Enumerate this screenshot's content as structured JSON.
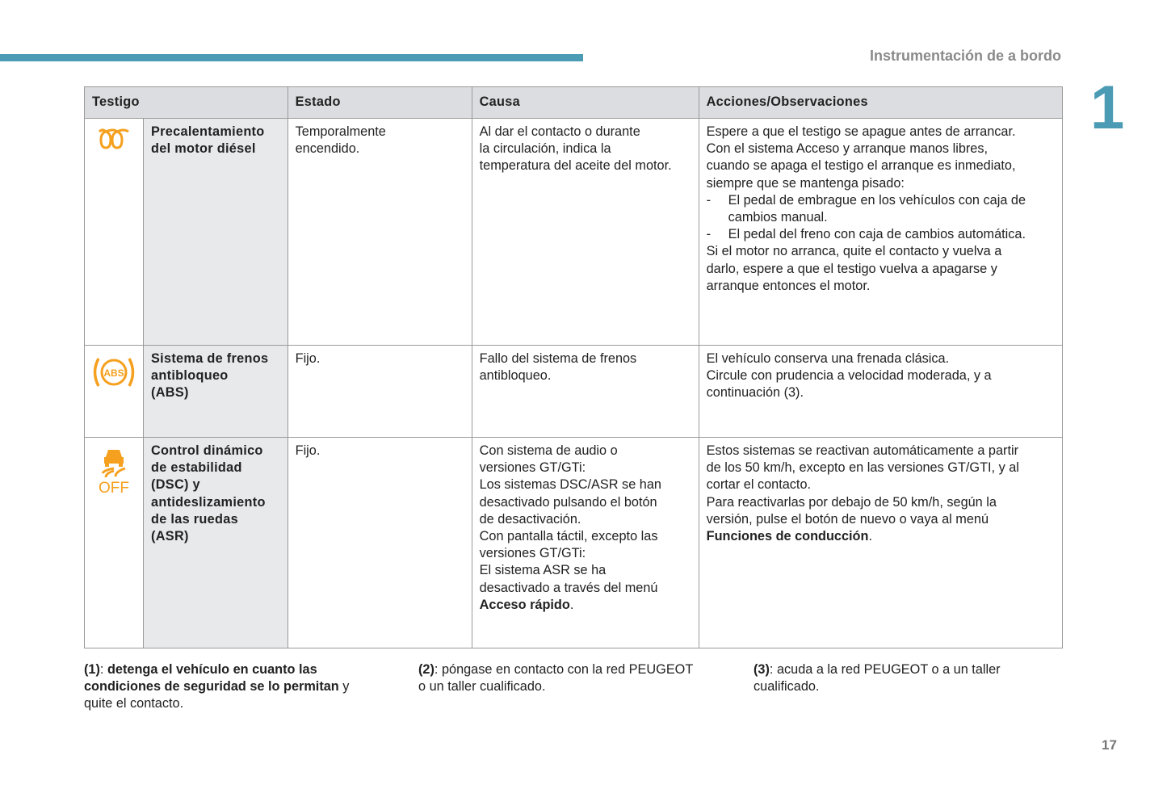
{
  "header": {
    "section_title": "Instrumentación de a bordo",
    "chapter_number": "1",
    "accent_color": "#4b9bb5"
  },
  "table": {
    "columns": [
      "Testigo",
      "Estado",
      "Causa",
      "Acciones/Observaciones"
    ],
    "rows": [
      {
        "icon": "preheating-coil-icon",
        "name": [
          "Precalentamiento",
          "del motor diésel"
        ],
        "estado": [
          "Temporalmente",
          "encendido."
        ],
        "causa": [
          "Al dar el contacto o durante",
          "la circulación, indica la",
          "temperatura del aceite del motor."
        ],
        "acciones": [
          "Espere a que el testigo se apague antes de arrancar.",
          "Con el sistema Acceso y arranque manos libres,",
          "cuando se apaga el testigo el arranque es inmediato,",
          "siempre que se mantenga pisado:",
          "-\tEl pedal de embrague en los vehículos con caja de",
          ">cambios manual.",
          "-\tEl pedal del freno con caja de cambios automática.",
          "Si el motor no arranca, quite el contacto y vuelva a",
          "darlo, espere a que el testigo vuelva a apagarse y",
          "arranque entonces el motor."
        ]
      },
      {
        "icon": "abs-warning-icon",
        "name": [
          "Sistema de frenos",
          "antibloqueo",
          "(ABS)"
        ],
        "estado": [
          "Fijo."
        ],
        "causa": [
          "Fallo del sistema de frenos",
          "antibloqueo."
        ],
        "acciones": [
          "El vehículo conserva una frenada clásica.",
          "Circule con prudencia a velocidad moderada, y a",
          "continuación (3)."
        ]
      },
      {
        "icon": "stability-control-off-icon",
        "icon_text": "OFF",
        "name": [
          "Control dinámico",
          "de estabilidad",
          "(DSC) y",
          "antideslizamiento",
          "de las ruedas",
          "(ASR)"
        ],
        "estado": [
          "Fijo."
        ],
        "causa": [
          "Con sistema de audio o",
          "versiones GT/GTi:",
          "Los sistemas DSC/ASR se han",
          "desactivado pulsando el botón",
          "de desactivación.",
          "Con pantalla táctil, excepto las",
          "versiones GT/GTi:",
          "El sistema ASR se ha",
          "desactivado a través del menú",
          [
            {
              "text": "Acceso rápido",
              "bold": true
            },
            {
              "text": "."
            }
          ]
        ],
        "acciones": [
          "Estos sistemas se reactivan automáticamente a partir",
          "de los 50 km/h, excepto en las versiones GT/GTI, y al",
          "cortar el contacto.",
          "Para reactivarlas por debajo de 50 km/h, según la",
          "versión, pulse el botón de nuevo o vaya al menú",
          [
            {
              "text": "Funciones de conducción",
              "bold": true
            },
            {
              "text": "."
            }
          ]
        ]
      }
    ]
  },
  "footnotes": [
    [
      [
        {
          "text": "(1)",
          "bold": true
        },
        {
          "text": ": "
        },
        {
          "text": "detenga el vehículo en cuanto las",
          "bold": true
        }
      ],
      [
        {
          "text": "condiciones de seguridad se lo permitan",
          "bold": true
        },
        {
          "text": " y"
        }
      ],
      "quite el contacto."
    ],
    [
      [
        {
          "text": "(2)",
          "bold": true
        },
        {
          "text": ": póngase en contacto con la red PEUGEOT"
        }
      ],
      "o un taller cualificado."
    ],
    [
      [
        {
          "text": "(3)",
          "bold": true
        },
        {
          "text": ": acuda a la red PEUGEOT o a un taller"
        }
      ],
      "cualificado."
    ]
  ],
  "page_number": "17"
}
